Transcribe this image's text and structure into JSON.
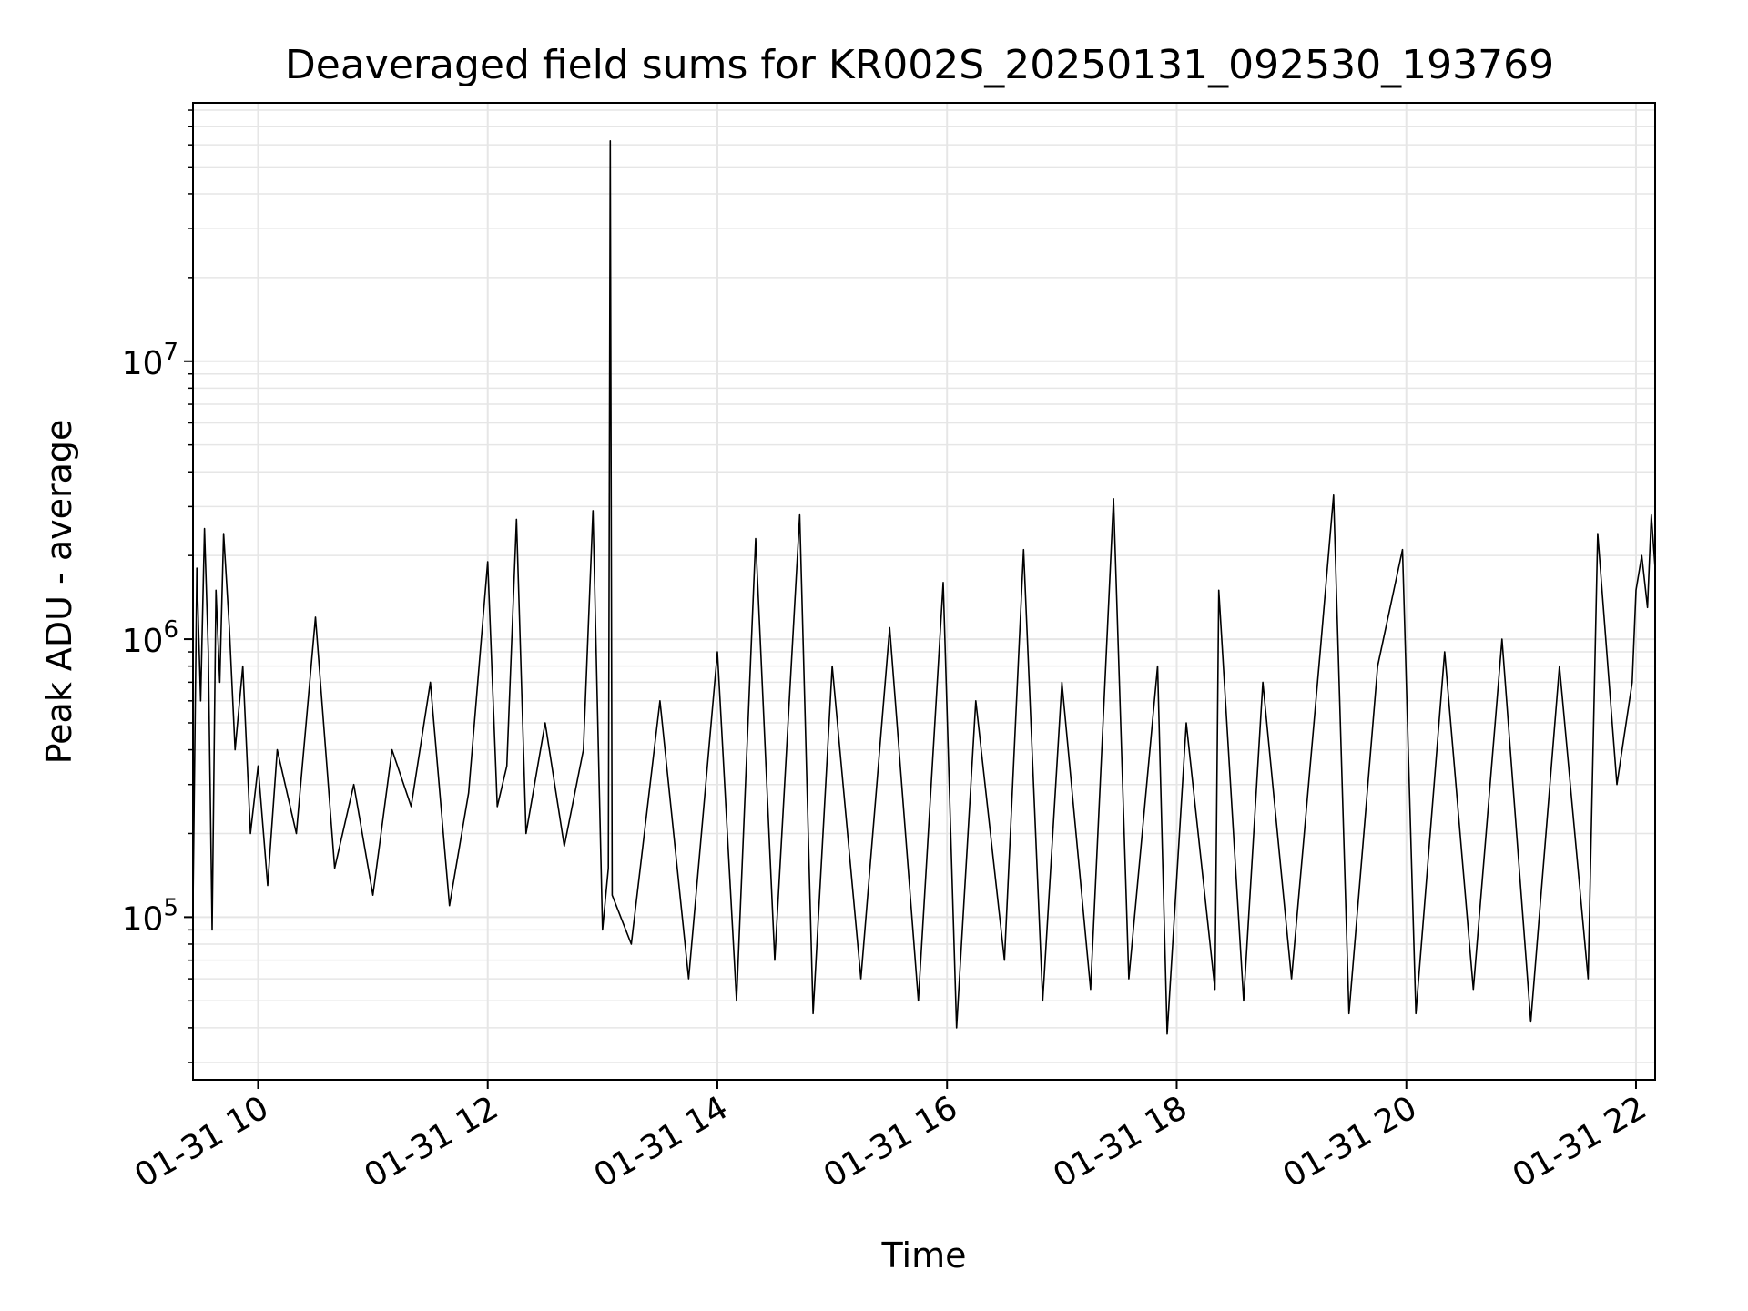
{
  "chart_data": {
    "type": "line",
    "title": "Deaveraged field sums for KR002S_20250131_092530_193769",
    "xlabel": "Time",
    "ylabel": "Peak ADU - average",
    "yscale": "log",
    "ylim": [
      26000,
      85000000
    ],
    "xlim": [
      "01-31 09:26",
      "01-31 22:10"
    ],
    "grid": true,
    "line_color": "#000000",
    "grid_color": "#e6e6e6",
    "x_ticks": [
      {
        "t": "01-31 10:00",
        "label": "01-31 10"
      },
      {
        "t": "01-31 12:00",
        "label": "01-31 12"
      },
      {
        "t": "01-31 14:00",
        "label": "01-31 14"
      },
      {
        "t": "01-31 16:00",
        "label": "01-31 16"
      },
      {
        "t": "01-31 18:00",
        "label": "01-31 18"
      },
      {
        "t": "01-31 20:00",
        "label": "01-31 20"
      },
      {
        "t": "01-31 22:00",
        "label": "01-31 22"
      }
    ],
    "y_ticks": [
      {
        "value": 100000,
        "base": "10",
        "exp": "5"
      },
      {
        "value": 1000000,
        "base": "10",
        "exp": "6"
      },
      {
        "value": 10000000,
        "base": "10",
        "exp": "7"
      }
    ],
    "series": [
      {
        "points": [
          [
            "01-31 09:26",
            110000
          ],
          [
            "01-31 09:28",
            1800000
          ],
          [
            "01-31 09:30",
            600000
          ],
          [
            "01-31 09:32",
            2500000
          ],
          [
            "01-31 09:34",
            900000
          ],
          [
            "01-31 09:36",
            90000
          ],
          [
            "01-31 09:38",
            1500000
          ],
          [
            "01-31 09:40",
            700000
          ],
          [
            "01-31 09:42",
            2400000
          ],
          [
            "01-31 09:45",
            1100000
          ],
          [
            "01-31 09:48",
            400000
          ],
          [
            "01-31 09:52",
            800000
          ],
          [
            "01-31 09:56",
            200000
          ],
          [
            "01-31 10:00",
            350000
          ],
          [
            "01-31 10:05",
            130000
          ],
          [
            "01-31 10:10",
            400000
          ],
          [
            "01-31 10:20",
            200000
          ],
          [
            "01-31 10:30",
            1200000
          ],
          [
            "01-31 10:40",
            150000
          ],
          [
            "01-31 10:50",
            300000
          ],
          [
            "01-31 11:00",
            120000
          ],
          [
            "01-31 11:10",
            400000
          ],
          [
            "01-31 11:20",
            250000
          ],
          [
            "01-31 11:30",
            700000
          ],
          [
            "01-31 11:40",
            110000
          ],
          [
            "01-31 11:50",
            280000
          ],
          [
            "01-31 12:00",
            1900000
          ],
          [
            "01-31 12:05",
            250000
          ],
          [
            "01-31 12:10",
            350000
          ],
          [
            "01-31 12:15",
            2700000
          ],
          [
            "01-31 12:20",
            200000
          ],
          [
            "01-31 12:30",
            500000
          ],
          [
            "01-31 12:40",
            180000
          ],
          [
            "01-31 12:50",
            400000
          ],
          [
            "01-31 12:55",
            2900000
          ],
          [
            "01-31 13:00",
            90000
          ],
          [
            "01-31 13:03",
            150000
          ],
          [
            "01-31 13:04",
            62000000
          ],
          [
            "01-31 13:05",
            120000
          ],
          [
            "01-31 13:15",
            80000
          ],
          [
            "01-31 13:30",
            600000
          ],
          [
            "01-31 13:45",
            60000
          ],
          [
            "01-31 14:00",
            900000
          ],
          [
            "01-31 14:10",
            50000
          ],
          [
            "01-31 14:20",
            2300000
          ],
          [
            "01-31 14:30",
            70000
          ],
          [
            "01-31 14:40",
            1200000
          ],
          [
            "01-31 14:43",
            2800000
          ],
          [
            "01-31 14:50",
            45000
          ],
          [
            "01-31 15:00",
            800000
          ],
          [
            "01-31 15:15",
            60000
          ],
          [
            "01-31 15:30",
            1100000
          ],
          [
            "01-31 15:45",
            50000
          ],
          [
            "01-31 15:58",
            1600000
          ],
          [
            "01-31 16:05",
            40000
          ],
          [
            "01-31 16:15",
            600000
          ],
          [
            "01-31 16:30",
            70000
          ],
          [
            "01-31 16:40",
            2100000
          ],
          [
            "01-31 16:50",
            50000
          ],
          [
            "01-31 17:00",
            700000
          ],
          [
            "01-31 17:15",
            55000
          ],
          [
            "01-31 17:27",
            3200000
          ],
          [
            "01-31 17:35",
            60000
          ],
          [
            "01-31 17:50",
            800000
          ],
          [
            "01-31 17:55",
            38000
          ],
          [
            "01-31 18:05",
            500000
          ],
          [
            "01-31 18:20",
            55000
          ],
          [
            "01-31 18:22",
            1500000
          ],
          [
            "01-31 18:35",
            50000
          ],
          [
            "01-31 18:45",
            700000
          ],
          [
            "01-31 19:00",
            60000
          ],
          [
            "01-31 19:15",
            900000
          ],
          [
            "01-31 19:22",
            3300000
          ],
          [
            "01-31 19:30",
            45000
          ],
          [
            "01-31 19:45",
            800000
          ],
          [
            "01-31 19:58",
            2100000
          ],
          [
            "01-31 20:05",
            45000
          ],
          [
            "01-31 20:20",
            900000
          ],
          [
            "01-31 20:35",
            55000
          ],
          [
            "01-31 20:50",
            1000000
          ],
          [
            "01-31 21:05",
            42000
          ],
          [
            "01-31 21:20",
            800000
          ],
          [
            "01-31 21:35",
            60000
          ],
          [
            "01-31 21:40",
            2400000
          ],
          [
            "01-31 21:50",
            300000
          ],
          [
            "01-31 21:58",
            700000
          ],
          [
            "01-31 22:00",
            1500000
          ],
          [
            "01-31 22:03",
            2000000
          ],
          [
            "01-31 22:06",
            1300000
          ],
          [
            "01-31 22:08",
            2800000
          ],
          [
            "01-31 22:10",
            1800000
          ]
        ]
      }
    ]
  }
}
